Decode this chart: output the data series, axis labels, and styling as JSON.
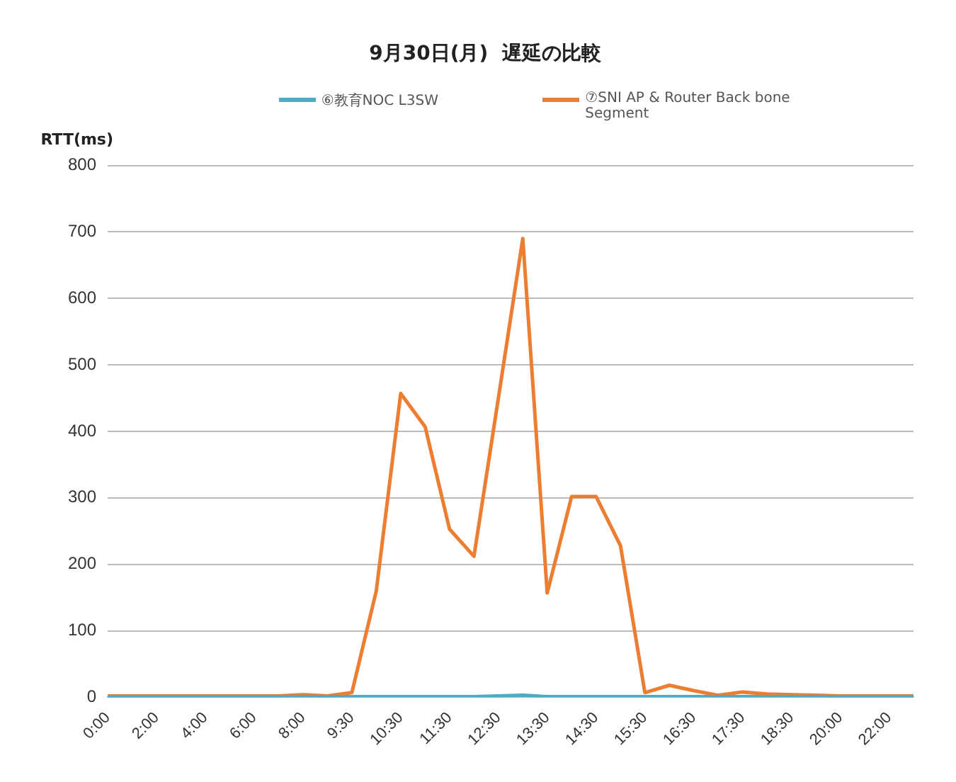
{
  "chart_data": {
    "type": "line",
    "title": "9月30日(月)  遅延の比較",
    "ylabel": "RTT(ms)",
    "categories": [
      "0:00",
      null,
      "2:00",
      null,
      "4:00",
      null,
      "6:00",
      null,
      "8:00",
      null,
      "9:30",
      null,
      "10:30",
      null,
      "11:30",
      null,
      "12:30",
      null,
      "13:30",
      null,
      "14:30",
      null,
      "15:30",
      null,
      "16:30",
      null,
      "17:30",
      null,
      "18:30",
      null,
      "20:00",
      null,
      "22:00",
      null
    ],
    "series": [
      {
        "name": "⑥教育NOC L3SW",
        "color": "#4bacc6",
        "values": [
          1,
          1,
          1,
          1,
          1,
          1,
          1,
          1,
          1,
          1,
          1,
          1,
          1,
          1,
          1,
          1,
          2,
          3,
          1,
          1,
          1,
          1,
          1,
          1,
          1,
          1,
          1,
          1,
          1,
          1,
          1,
          1,
          1,
          1
        ]
      },
      {
        "name": "⑦SNI AP & Router Back bone Segment",
        "color": "#ed7d31",
        "values": [
          2,
          2,
          2,
          2,
          2,
          2,
          2,
          2,
          4,
          2,
          7,
          160,
          457,
          407,
          253,
          212,
          450,
          690,
          157,
          302,
          302,
          228,
          7,
          18,
          10,
          3,
          8,
          5,
          4,
          3,
          2,
          2,
          2,
          2
        ]
      }
    ],
    "ylim": [
      0,
      800
    ],
    "yticks": [
      0,
      100,
      200,
      300,
      400,
      500,
      600,
      700,
      800
    ],
    "grid": "y",
    "legend": "top",
    "marker": "none",
    "line_style": "solid"
  }
}
